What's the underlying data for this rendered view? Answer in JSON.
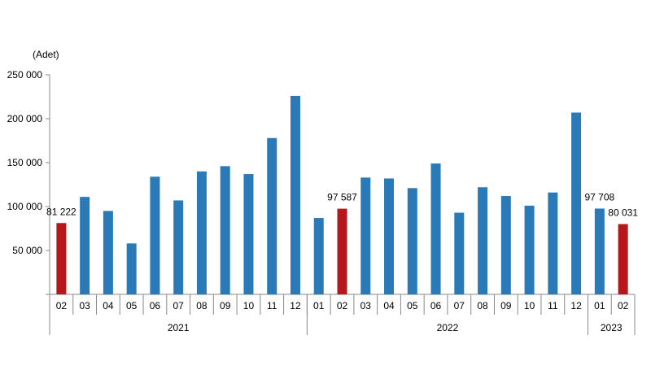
{
  "chart_data": {
    "type": "bar",
    "ylabel": "(Adet)",
    "ylim": [
      0,
      250000
    ],
    "yticks": [
      {
        "value": 50000,
        "label": "50 000"
      },
      {
        "value": 100000,
        "label": "100 000"
      },
      {
        "value": 150000,
        "label": "150 000"
      },
      {
        "value": 200000,
        "label": "200 000"
      },
      {
        "value": 250000,
        "label": "250 000"
      }
    ],
    "categories": [
      "02",
      "03",
      "04",
      "05",
      "06",
      "07",
      "08",
      "09",
      "10",
      "11",
      "12",
      "01",
      "02",
      "03",
      "04",
      "05",
      "06",
      "07",
      "08",
      "09",
      "10",
      "11",
      "12",
      "01",
      "02"
    ],
    "years": [
      {
        "label": "2021",
        "start": 0,
        "end": 10
      },
      {
        "label": "2022",
        "start": 11,
        "end": 22
      },
      {
        "label": "2023",
        "start": 23,
        "end": 24
      }
    ],
    "values": [
      81222,
      111000,
      95000,
      58000,
      134000,
      107000,
      140000,
      146000,
      137000,
      178000,
      226000,
      87000,
      97587,
      133000,
      132000,
      121000,
      149000,
      93000,
      122000,
      112000,
      101000,
      116000,
      207000,
      97708,
      80031
    ],
    "highlight_indices": [
      0,
      12,
      24
    ],
    "data_labels": [
      {
        "index": 0,
        "text": "81 222"
      },
      {
        "index": 12,
        "text": "97 587"
      },
      {
        "index": 23,
        "text": "97 708"
      },
      {
        "index": 24,
        "text": "80 031"
      }
    ],
    "colors": {
      "default": "#2a7ab8",
      "highlight": "#b5171b",
      "axis": "#888888"
    },
    "grid": false,
    "legend": "none"
  }
}
